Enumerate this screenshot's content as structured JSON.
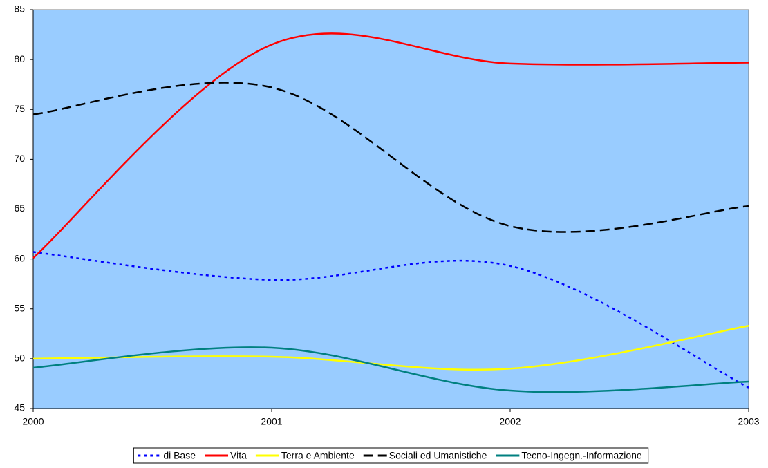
{
  "chart_data": {
    "type": "line",
    "categories": [
      "2000",
      "2001",
      "2002",
      "2003"
    ],
    "series": [
      {
        "name": "di Base",
        "color": "#0000ff",
        "dash": "dotted",
        "values": [
          60.7,
          57.9,
          59.3,
          47.1
        ]
      },
      {
        "name": "Vita",
        "color": "#ff0000",
        "dash": "solid",
        "values": [
          60.1,
          81.5,
          79.6,
          79.7
        ]
      },
      {
        "name": "Terra e Ambiente",
        "color": "#ffff00",
        "dash": "solid",
        "values": [
          50.0,
          50.2,
          49.0,
          53.3
        ]
      },
      {
        "name": "Sociali ed Umanistiche",
        "color": "#000000",
        "dash": "dashed",
        "values": [
          74.5,
          77.2,
          63.3,
          65.3
        ]
      },
      {
        "name": "Tecno-Ingegn.-Informazione",
        "color": "#008080",
        "dash": "solid",
        "values": [
          49.1,
          51.1,
          46.8,
          47.7
        ]
      }
    ],
    "ylim": [
      45,
      85
    ],
    "yticks": [
      45,
      50,
      55,
      60,
      65,
      70,
      75,
      80,
      85
    ],
    "smooth": true,
    "legend": "bottom",
    "plot_background": "#99ccff"
  }
}
